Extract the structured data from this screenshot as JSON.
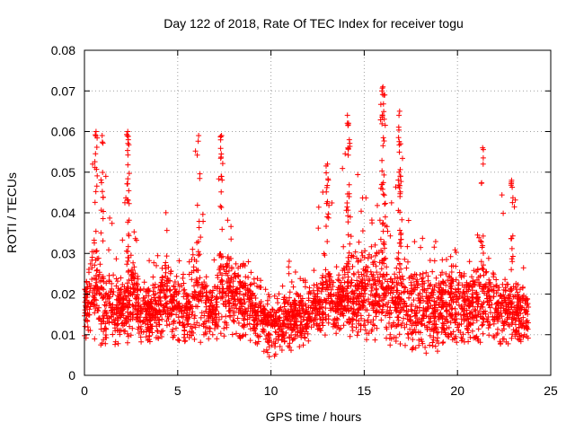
{
  "chart_data": {
    "type": "scatter",
    "title": "Day 122 of 2018, Rate Of TEC Index for receiver togu",
    "xlabel": "GPS time / hours",
    "ylabel": "ROTI / TECUs",
    "xlim": [
      0,
      25
    ],
    "ylim": [
      0,
      0.08
    ],
    "grid": true,
    "marker": "+",
    "color": "#ff0000",
    "x_ticks": [
      "0",
      "5",
      "10",
      "15",
      "20",
      "25"
    ],
    "y_ticks": [
      "0",
      "0.01",
      "0.02",
      "0.03",
      "0.04",
      "0.05",
      "0.06",
      "0.07",
      "0.08"
    ],
    "envelope": {
      "x": [
        0.0,
        0.5,
        0.8,
        1.0,
        1.5,
        2.0,
        2.3,
        2.6,
        3.0,
        3.5,
        4.0,
        4.4,
        4.8,
        5.2,
        5.6,
        6.0,
        6.5,
        7.0,
        7.3,
        7.6,
        8.0,
        8.4,
        8.8,
        9.2,
        9.6,
        10.0,
        10.5,
        11.0,
        11.5,
        12.0,
        12.5,
        13.0,
        13.5,
        14.0,
        14.5,
        15.0,
        15.5,
        16.0,
        16.5,
        17.0,
        17.5,
        18.0,
        18.5,
        19.0,
        19.5,
        20.0,
        20.5,
        21.0,
        21.5,
        22.0,
        22.5,
        23.0,
        23.5,
        23.8
      ],
      "low": [
        0.009,
        0.008,
        0.007,
        0.006,
        0.007,
        0.008,
        0.007,
        0.007,
        0.008,
        0.008,
        0.009,
        0.009,
        0.008,
        0.007,
        0.008,
        0.007,
        0.009,
        0.009,
        0.009,
        0.01,
        0.01,
        0.009,
        0.008,
        0.008,
        0.006,
        0.004,
        0.005,
        0.006,
        0.007,
        0.008,
        0.009,
        0.009,
        0.009,
        0.008,
        0.007,
        0.008,
        0.008,
        0.007,
        0.007,
        0.006,
        0.006,
        0.005,
        0.005,
        0.006,
        0.007,
        0.007,
        0.008,
        0.008,
        0.008,
        0.008,
        0.007,
        0.008,
        0.008,
        0.009
      ],
      "high": [
        0.022,
        0.06,
        0.052,
        0.06,
        0.038,
        0.034,
        0.06,
        0.04,
        0.033,
        0.028,
        0.03,
        0.045,
        0.037,
        0.03,
        0.028,
        0.059,
        0.035,
        0.03,
        0.059,
        0.046,
        0.042,
        0.037,
        0.032,
        0.026,
        0.022,
        0.021,
        0.024,
        0.035,
        0.03,
        0.028,
        0.041,
        0.052,
        0.036,
        0.059,
        0.064,
        0.046,
        0.052,
        0.071,
        0.048,
        0.065,
        0.036,
        0.035,
        0.033,
        0.034,
        0.032,
        0.035,
        0.034,
        0.036,
        0.056,
        0.049,
        0.046,
        0.048,
        0.034,
        0.022
      ],
      "center": [
        0.016,
        0.022,
        0.02,
        0.017,
        0.017,
        0.016,
        0.019,
        0.018,
        0.016,
        0.016,
        0.017,
        0.02,
        0.017,
        0.016,
        0.016,
        0.02,
        0.016,
        0.016,
        0.022,
        0.021,
        0.02,
        0.019,
        0.018,
        0.016,
        0.014,
        0.012,
        0.012,
        0.014,
        0.014,
        0.015,
        0.016,
        0.018,
        0.017,
        0.019,
        0.02,
        0.02,
        0.021,
        0.021,
        0.019,
        0.018,
        0.017,
        0.016,
        0.016,
        0.017,
        0.017,
        0.017,
        0.017,
        0.017,
        0.018,
        0.017,
        0.016,
        0.016,
        0.015,
        0.015
      ]
    },
    "spikes": [
      {
        "x": 0.62,
        "y": 0.06
      },
      {
        "x": 0.95,
        "y": 0.059
      },
      {
        "x": 2.32,
        "y": 0.06
      },
      {
        "x": 2.35,
        "y": 0.058
      },
      {
        "x": 6.12,
        "y": 0.059
      },
      {
        "x": 7.35,
        "y": 0.059
      },
      {
        "x": 13.03,
        "y": 0.052
      },
      {
        "x": 14.1,
        "y": 0.064
      },
      {
        "x": 14.2,
        "y": 0.058
      },
      {
        "x": 15.95,
        "y": 0.07
      },
      {
        "x": 16.0,
        "y": 0.071
      },
      {
        "x": 16.1,
        "y": 0.069
      },
      {
        "x": 16.9,
        "y": 0.065
      },
      {
        "x": 16.95,
        "y": 0.057
      },
      {
        "x": 21.35,
        "y": 0.056
      },
      {
        "x": 22.9,
        "y": 0.048
      }
    ]
  }
}
